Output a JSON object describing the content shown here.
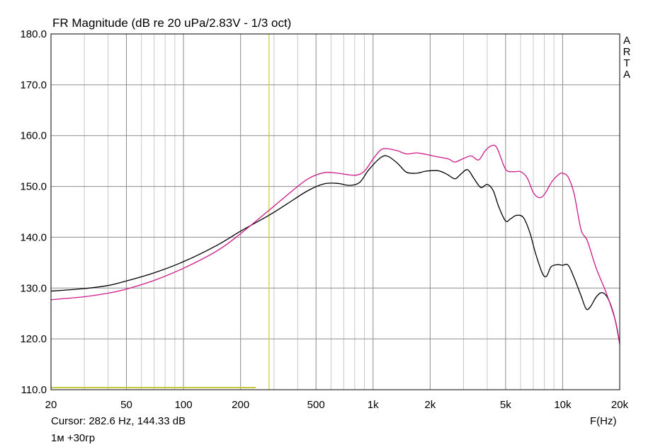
{
  "chart_data": {
    "type": "line",
    "title": "FR Magnitude (dB re 20 uPa/2.83V - 1/3 oct)",
    "xlabel": "F(Hz)",
    "ylabel": "",
    "x_scale": "log",
    "xlim": [
      20,
      20000
    ],
    "ylim": [
      110,
      180
    ],
    "grid": true,
    "x_ticks": [
      20,
      50,
      100,
      200,
      500,
      1000,
      2000,
      5000,
      10000,
      20000
    ],
    "x_tick_labels": [
      "20",
      "50",
      "100",
      "200",
      "500",
      "1k",
      "2k",
      "5k",
      "10k",
      "20k"
    ],
    "y_ticks": [
      110,
      120,
      130,
      140,
      150,
      160,
      170,
      180
    ],
    "y_tick_labels": [
      "110.0",
      "120.0",
      "130.0",
      "140.0",
      "150.0",
      "160.0",
      "170.0",
      "180.0"
    ],
    "brand": "ARTA",
    "cursor_text": "Cursor: 282.6 Hz, 144.33 dB",
    "caption": "1м +30гр",
    "cursor": {
      "freq": 282.6,
      "db": 144.33,
      "color": "#c8c83c"
    },
    "series": [
      {
        "color": "#000000",
        "points": [
          [
            20,
            129.4
          ],
          [
            30,
            129.9
          ],
          [
            40,
            130.5
          ],
          [
            50,
            131.4
          ],
          [
            70,
            133.0
          ],
          [
            100,
            135.2
          ],
          [
            150,
            138.4
          ],
          [
            200,
            141.2
          ],
          [
            282.6,
            144.33
          ],
          [
            350,
            146.5
          ],
          [
            450,
            149.1
          ],
          [
            550,
            150.5
          ],
          [
            650,
            150.6
          ],
          [
            750,
            150.2
          ],
          [
            850,
            150.8
          ],
          [
            950,
            153.3
          ],
          [
            1100,
            155.7
          ],
          [
            1200,
            155.9
          ],
          [
            1350,
            154.5
          ],
          [
            1500,
            152.8
          ],
          [
            1700,
            152.6
          ],
          [
            1900,
            153.0
          ],
          [
            2200,
            153.1
          ],
          [
            2450,
            152.4
          ],
          [
            2700,
            151.5
          ],
          [
            2900,
            152.4
          ],
          [
            3150,
            153.3
          ],
          [
            3400,
            151.6
          ],
          [
            3700,
            149.8
          ],
          [
            4000,
            150.4
          ],
          [
            4300,
            149.2
          ],
          [
            4600,
            146.0
          ],
          [
            5000,
            143.2
          ],
          [
            5300,
            143.6
          ],
          [
            5700,
            144.3
          ],
          [
            6200,
            143.9
          ],
          [
            6700,
            141.0
          ],
          [
            7200,
            136.8
          ],
          [
            7800,
            133.0
          ],
          [
            8200,
            132.3
          ],
          [
            8700,
            134.2
          ],
          [
            9400,
            134.6
          ],
          [
            10000,
            134.5
          ],
          [
            10700,
            134.5
          ],
          [
            11500,
            132.0
          ],
          [
            12500,
            128.5
          ],
          [
            13300,
            125.9
          ],
          [
            14000,
            126.3
          ],
          [
            15000,
            128.2
          ],
          [
            16000,
            129.1
          ],
          [
            17000,
            128.5
          ],
          [
            18000,
            126.5
          ],
          [
            19000,
            123.5
          ],
          [
            20000,
            119.0
          ]
        ]
      },
      {
        "color": "#cc1a8a",
        "points": [
          [
            20,
            127.7
          ],
          [
            30,
            128.3
          ],
          [
            40,
            129.0
          ],
          [
            50,
            129.8
          ],
          [
            70,
            131.5
          ],
          [
            100,
            133.9
          ],
          [
            150,
            137.3
          ],
          [
            200,
            140.7
          ],
          [
            282.6,
            145.3
          ],
          [
            350,
            148.2
          ],
          [
            450,
            151.4
          ],
          [
            550,
            152.7
          ],
          [
            650,
            152.6
          ],
          [
            800,
            152.2
          ],
          [
            900,
            153.0
          ],
          [
            1000,
            155.4
          ],
          [
            1100,
            157.2
          ],
          [
            1200,
            157.4
          ],
          [
            1350,
            157.0
          ],
          [
            1500,
            156.4
          ],
          [
            1700,
            156.6
          ],
          [
            1900,
            156.3
          ],
          [
            2200,
            155.8
          ],
          [
            2500,
            155.4
          ],
          [
            2700,
            154.8
          ],
          [
            3000,
            155.5
          ],
          [
            3300,
            156.0
          ],
          [
            3600,
            155.2
          ],
          [
            3900,
            157.0
          ],
          [
            4200,
            158.0
          ],
          [
            4500,
            157.6
          ],
          [
            5000,
            153.4
          ],
          [
            5500,
            152.9
          ],
          [
            6000,
            152.9
          ],
          [
            6500,
            151.7
          ],
          [
            7000,
            148.8
          ],
          [
            7500,
            147.8
          ],
          [
            8000,
            148.4
          ],
          [
            8800,
            151.0
          ],
          [
            9500,
            152.3
          ],
          [
            10000,
            152.6
          ],
          [
            10700,
            151.8
          ],
          [
            11500,
            148.5
          ],
          [
            12500,
            141.5
          ],
          [
            13500,
            139.3
          ],
          [
            15000,
            134.0
          ],
          [
            17000,
            129.0
          ],
          [
            19000,
            123.5
          ],
          [
            20000,
            119.0
          ]
        ]
      }
    ]
  }
}
